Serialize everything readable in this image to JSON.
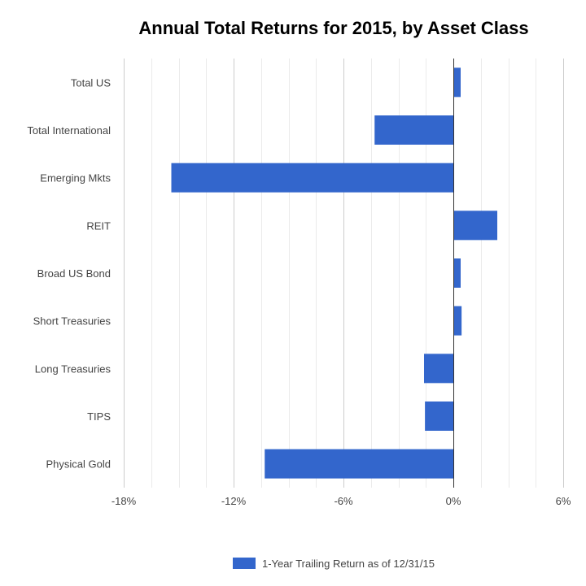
{
  "chart_data": {
    "type": "bar",
    "orientation": "horizontal",
    "title": "Annual Total Returns for 2015, by Asset Class",
    "categories": [
      "Total US",
      "Total International",
      "Emerging Mkts",
      "REIT",
      "Broad US Bond",
      "Short Treasuries",
      "Long Treasuries",
      "TIPS",
      "Physical Gold"
    ],
    "series": [
      {
        "name": "1-Year Trailing Return as of 12/31/15",
        "values": [
          0.4,
          -4.3,
          -15.4,
          2.4,
          0.4,
          0.45,
          -1.6,
          -1.55,
          -10.3
        ],
        "color": "#3366cc"
      }
    ],
    "xlim": [
      -18,
      6
    ],
    "x_ticks": [
      -18,
      -12,
      -6,
      0,
      6
    ],
    "x_tick_labels": [
      "-18%",
      "-12%",
      "-6%",
      "0%",
      "6%"
    ],
    "grid": true,
    "legend_position": "bottom"
  }
}
